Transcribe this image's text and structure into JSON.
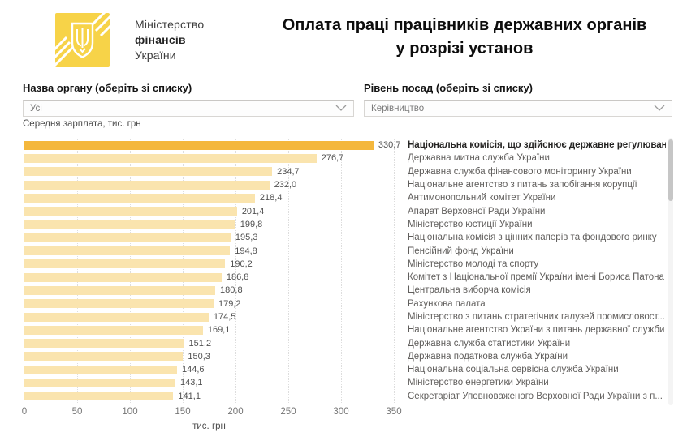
{
  "header": {
    "ministry": {
      "line1": "Міністерство",
      "line2": "фінансів",
      "line3": "України"
    },
    "title_line1": "Оплата праці працівників державних органів",
    "title_line2": "у розрізі установ"
  },
  "filters": {
    "organ": {
      "label": "Назва органу (оберіть зі списку)",
      "value": "Усі"
    },
    "positions": {
      "label": "Рівень посад (оберіть зі списку)",
      "value": "Керівництво"
    }
  },
  "chart_data": {
    "type": "bar",
    "orientation": "horizontal",
    "title": "Середня зарплата, тис. грн",
    "xlabel": "тис. грн",
    "xlim": [
      0,
      350
    ],
    "xticks": [
      0,
      50,
      100,
      150,
      200,
      250,
      300,
      350
    ],
    "grid": "dotted-vertical",
    "legend": "none",
    "highlighted_index": 0,
    "categories": [
      "Національна комісія, що здійснює державне регулюванн",
      "Державна митна служба України",
      "Державна служба фінансового моніторингу України",
      "Національне агентство з питань запобігання корупції",
      "Антимонопольний комітет України",
      "Апарат Верховної Ради України",
      "Міністерство юстиції України",
      "Національна комісія з цінних паперів та фондового ринку",
      "Пенсійний фонд України",
      "Міністерство молоді та спорту",
      "Комітет з Національної премії України імені Бориса Патона",
      "Центральна виборча комісія",
      "Рахункова палата",
      "Міністерство з питань стратегічних галузей промисловост...",
      "Національне агентство України з питань державної служби",
      "Державна служба статистики України",
      "Державна податкова служба України",
      "Національна соціальна сервісна служба України",
      "Міністерство енергетики України",
      "Секретаріат Уповноваженого Верховної Ради України з п..."
    ],
    "values": [
      330.7,
      276.7,
      234.7,
      232.0,
      218.4,
      201.4,
      199.8,
      195.3,
      194.8,
      190.2,
      186.8,
      180.8,
      179.2,
      174.5,
      169.1,
      151.2,
      150.3,
      144.6,
      143.1,
      141.1
    ],
    "value_labels": [
      "330,7",
      "276,7",
      "234,7",
      "232,0",
      "218,4",
      "201,4",
      "199,8",
      "195,3",
      "194,8",
      "190,2",
      "186,8",
      "180,8",
      "179,2",
      "174,5",
      "169,1",
      "151,2",
      "150,3",
      "144,6",
      "143,1",
      "141,1"
    ],
    "colors": {
      "bar": "#FAE4AE",
      "bar_highlighted": "#F4B73C",
      "logo_yellow": "#F7D348"
    }
  }
}
